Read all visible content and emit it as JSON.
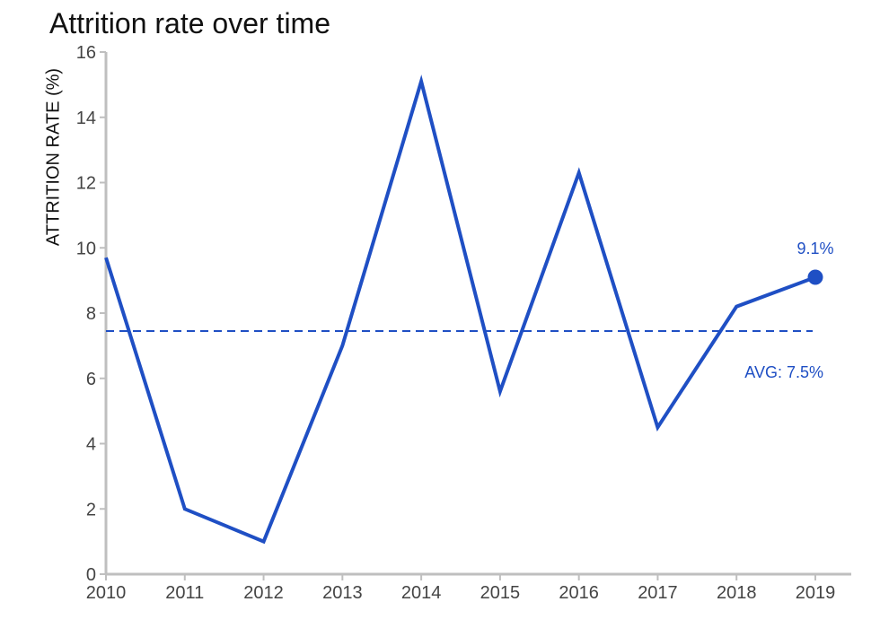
{
  "chart_data": {
    "type": "line",
    "title": "Attrition rate over time",
    "xlabel": "",
    "ylabel": "ATTRITION RATE (%)",
    "x": [
      2010,
      2011,
      2012,
      2013,
      2014,
      2015,
      2016,
      2017,
      2018,
      2019
    ],
    "series": [
      {
        "values": [
          9.7,
          2.0,
          1.0,
          7.0,
          15.1,
          5.6,
          12.3,
          4.5,
          8.2,
          9.1
        ]
      }
    ],
    "ylim": [
      0,
      16
    ],
    "yticks": [
      0,
      2,
      4,
      6,
      8,
      10,
      12,
      14,
      16
    ],
    "xticks": [
      2010,
      2011,
      2012,
      2013,
      2014,
      2015,
      2016,
      2017,
      2018,
      2019
    ],
    "grid": false,
    "reference_line": {
      "value": 7.45,
      "label": "AVG: 7.5%",
      "style": "dashed"
    },
    "end_point_label": "9.1%",
    "colors": {
      "line": "#1f4fc4",
      "axis": "#bfbfbf",
      "annotation": "#1f4fc4"
    }
  }
}
